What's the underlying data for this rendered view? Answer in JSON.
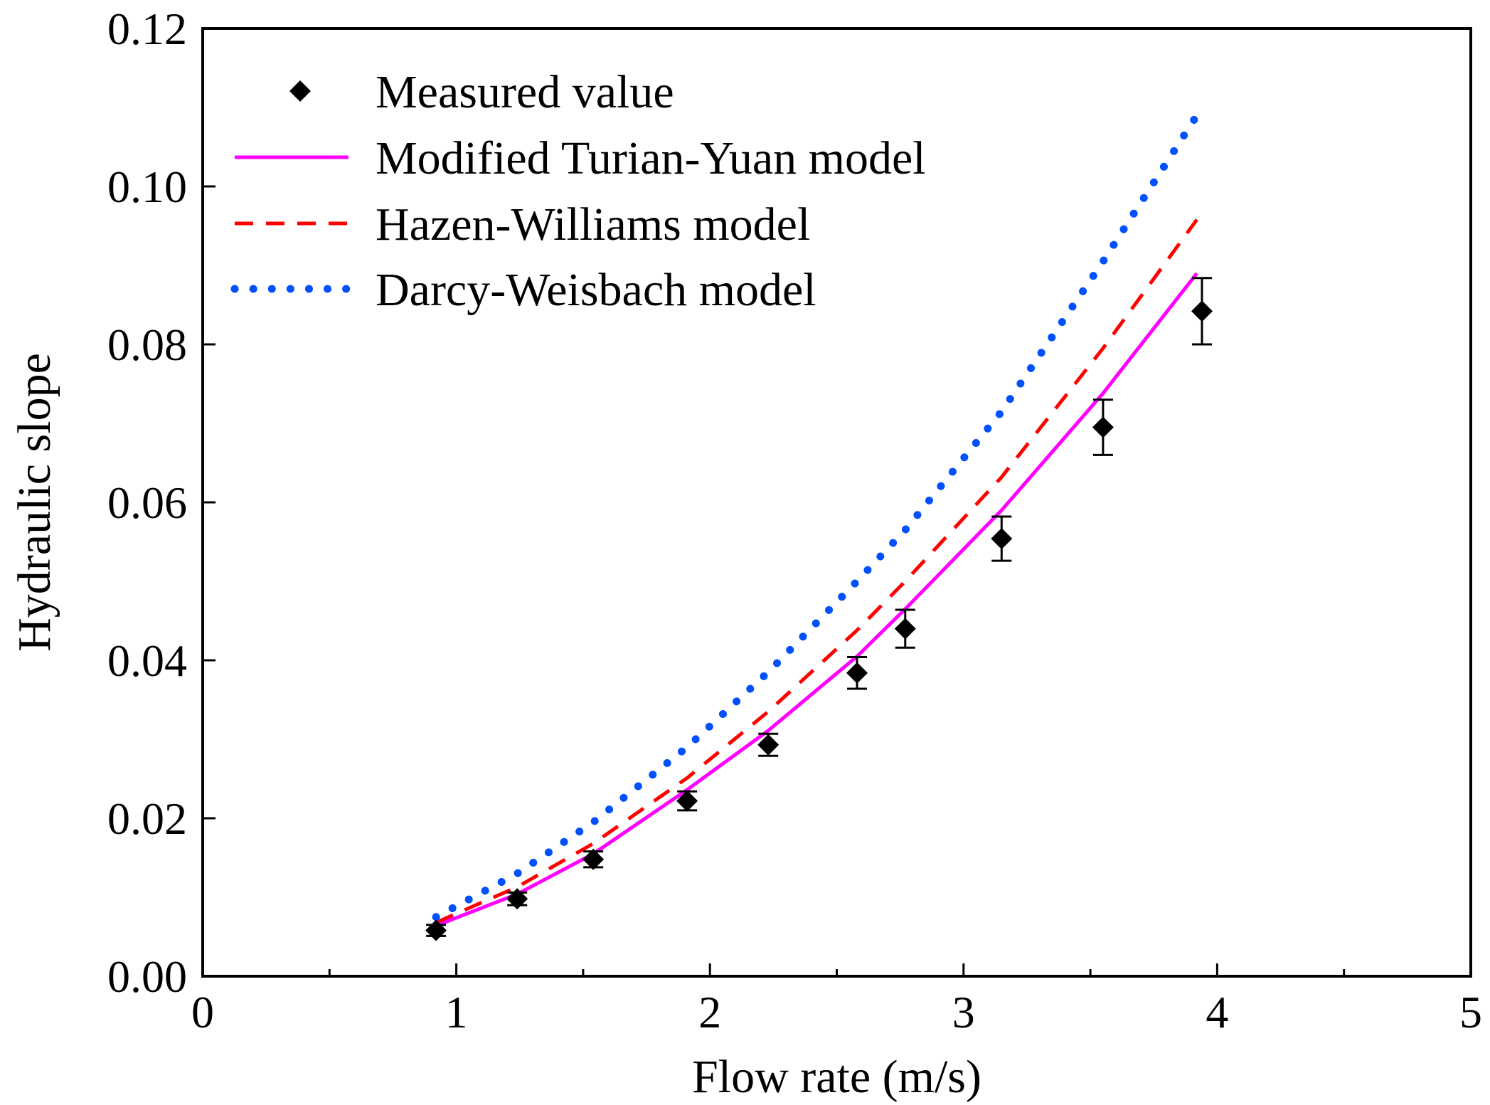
{
  "chart_data": {
    "type": "scatter",
    "xlabel": "Flow rate (m/s)",
    "ylabel": "Hydraulic slope",
    "xlim": [
      0,
      5
    ],
    "ylim": [
      0,
      0.12
    ],
    "x_ticks": [
      "0",
      "1",
      "2",
      "3",
      "4",
      "5"
    ],
    "y_ticks": [
      "0.00",
      "0.02",
      "0.04",
      "0.06",
      "0.08",
      "0.10",
      "0.12"
    ],
    "legend_position": "top-left",
    "grid": false,
    "series": [
      {
        "name": "Measured value",
        "kind": "scatter",
        "marker": "diamond",
        "color": "#000000",
        "x": [
          0.92,
          1.24,
          1.54,
          1.91,
          2.23,
          2.58,
          2.77,
          3.15,
          3.55,
          3.94
        ],
        "y": [
          0.0058,
          0.0098,
          0.0148,
          0.0222,
          0.0293,
          0.0384,
          0.044,
          0.0554,
          0.0695,
          0.0842
        ],
        "err": [
          0.0007,
          0.0008,
          0.001,
          0.0012,
          0.0014,
          0.002,
          0.0024,
          0.0028,
          0.0035,
          0.0042
        ]
      },
      {
        "name": "Modified Turian-Yuan model",
        "kind": "line",
        "style": "solid",
        "color": "#ff00ff",
        "x": [
          0.92,
          1.24,
          1.54,
          1.91,
          2.23,
          2.58,
          2.77,
          3.15,
          3.55,
          3.92
        ],
        "y": [
          0.0064,
          0.0104,
          0.0155,
          0.0236,
          0.0311,
          0.0405,
          0.0465,
          0.059,
          0.0738,
          0.089
        ]
      },
      {
        "name": "Hazen-Williams model",
        "kind": "line",
        "style": "dashed",
        "color": "#ff0000",
        "x": [
          0.92,
          1.24,
          1.54,
          1.91,
          2.23,
          2.58,
          2.77,
          3.15,
          3.55,
          3.92
        ],
        "y": [
          0.0068,
          0.0113,
          0.0168,
          0.0251,
          0.0335,
          0.0438,
          0.05,
          0.0632,
          0.0795,
          0.0958
        ]
      },
      {
        "name": "Darcy-Weisbach model",
        "kind": "line",
        "style": "dotted",
        "color": "#0050ff",
        "x": [
          0.92,
          1.24,
          1.54,
          1.91,
          2.23,
          2.58,
          2.77,
          3.15,
          3.55,
          3.92
        ],
        "y": [
          0.0075,
          0.013,
          0.0195,
          0.029,
          0.0385,
          0.05,
          0.0565,
          0.0715,
          0.0905,
          0.109
        ]
      }
    ]
  }
}
